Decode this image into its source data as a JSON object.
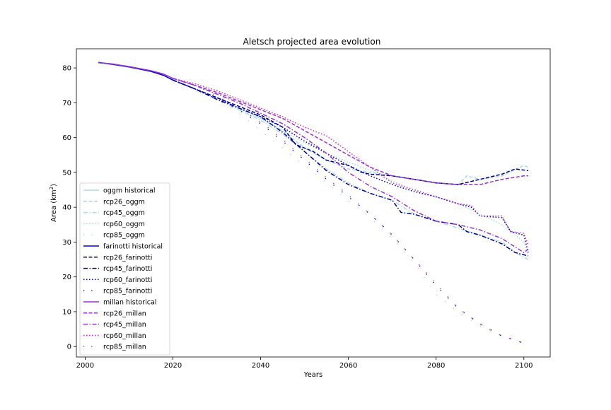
{
  "chart_data": {
    "type": "line",
    "title": "Aletsch projected area evolution",
    "xlabel": "Years",
    "ylabel_main": "Area (km",
    "ylabel_sup": "2",
    "ylabel_tail": ")",
    "xlim": [
      1998,
      2106
    ],
    "ylim": [
      -3,
      85.5
    ],
    "xticks": [
      2000,
      2020,
      2040,
      2060,
      2080,
      2100
    ],
    "yticks": [
      0,
      10,
      20,
      30,
      40,
      50,
      60,
      70,
      80
    ],
    "legend_position": "lower-left",
    "series": [
      {
        "name": "oggm historical",
        "color": "#add8e6",
        "dash": "solid",
        "width": 1.5,
        "points": [
          [
            2003,
            81.5
          ],
          [
            2006,
            81.0
          ],
          [
            2010,
            80.2
          ],
          [
            2015,
            79.0
          ],
          [
            2018,
            77.8
          ],
          [
            2020,
            76.6
          ]
        ]
      },
      {
        "name": "rcp26_oggm",
        "color": "#add8e6",
        "dash": "dashed",
        "width": 1.5,
        "points": [
          [
            2020,
            76.6
          ],
          [
            2025,
            74.0
          ],
          [
            2030,
            71.5
          ],
          [
            2035,
            68.5
          ],
          [
            2040,
            65.5
          ],
          [
            2045,
            62.0
          ],
          [
            2050,
            57.0
          ],
          [
            2055,
            53.5
          ],
          [
            2060,
            51.0
          ],
          [
            2065,
            50.0
          ],
          [
            2070,
            49.0
          ],
          [
            2075,
            48.0
          ],
          [
            2080,
            47.0
          ],
          [
            2085,
            46.5
          ],
          [
            2087,
            49.0
          ],
          [
            2090,
            48.0
          ],
          [
            2095,
            49.0
          ],
          [
            2100,
            52.0
          ],
          [
            2101,
            51.5
          ]
        ]
      },
      {
        "name": "rcp45_oggm",
        "color": "#add8e6",
        "dash": "dashdot",
        "width": 1.5,
        "points": [
          [
            2020,
            76.6
          ],
          [
            2025,
            74.0
          ],
          [
            2030,
            71.0
          ],
          [
            2035,
            68.0
          ],
          [
            2040,
            65.0
          ],
          [
            2045,
            61.0
          ],
          [
            2050,
            56.0
          ],
          [
            2055,
            51.0
          ],
          [
            2060,
            47.0
          ],
          [
            2065,
            44.0
          ],
          [
            2070,
            42.0
          ],
          [
            2075,
            38.0
          ],
          [
            2080,
            36.0
          ],
          [
            2085,
            34.0
          ],
          [
            2090,
            32.0
          ],
          [
            2095,
            30.0
          ],
          [
            2098,
            27.0
          ],
          [
            2101,
            25.0
          ]
        ]
      },
      {
        "name": "rcp60_oggm",
        "color": "#add8e6",
        "dash": "dotted",
        "width": 1.5,
        "points": [
          [
            2020,
            76.6
          ],
          [
            2025,
            74.0
          ],
          [
            2030,
            71.5
          ],
          [
            2035,
            68.5
          ],
          [
            2040,
            65.5
          ],
          [
            2045,
            62.0
          ],
          [
            2050,
            58.5
          ],
          [
            2055,
            55.5
          ],
          [
            2060,
            53.0
          ],
          [
            2065,
            50.5
          ],
          [
            2070,
            47.5
          ],
          [
            2075,
            45.0
          ],
          [
            2080,
            43.0
          ],
          [
            2085,
            41.0
          ],
          [
            2090,
            38.0
          ],
          [
            2095,
            35.0
          ],
          [
            2100,
            30.0
          ],
          [
            2101,
            26.0
          ]
        ]
      },
      {
        "name": "rcp85_oggm",
        "color": "#add8e6",
        "dash": "sparse",
        "width": 1.5,
        "points": [
          [
            2020,
            76.6
          ],
          [
            2025,
            74.0
          ],
          [
            2030,
            71.0
          ],
          [
            2035,
            67.0
          ],
          [
            2040,
            62.0
          ],
          [
            2045,
            57.0
          ],
          [
            2050,
            52.0
          ],
          [
            2055,
            47.0
          ],
          [
            2060,
            42.0
          ],
          [
            2065,
            37.0
          ],
          [
            2070,
            31.0
          ],
          [
            2075,
            24.0
          ],
          [
            2080,
            15.0
          ],
          [
            2085,
            10.0
          ],
          [
            2090,
            6.0
          ],
          [
            2095,
            3.0
          ],
          [
            2100,
            1.0
          ],
          [
            2101,
            0.5
          ]
        ]
      },
      {
        "name": "farinotti historical",
        "color": "#0000cd",
        "dash": "solid",
        "width": 1.5,
        "points": [
          [
            2003,
            81.6
          ],
          [
            2006,
            81.1
          ],
          [
            2010,
            80.3
          ],
          [
            2015,
            79.0
          ],
          [
            2018,
            77.8
          ],
          [
            2020,
            76.5
          ]
        ]
      },
      {
        "name": "rcp26_farinotti",
        "color": "#00008b",
        "dash": "dashed",
        "width": 1.5,
        "points": [
          [
            2020,
            76.5
          ],
          [
            2025,
            74.0
          ],
          [
            2030,
            71.5
          ],
          [
            2035,
            69.0
          ],
          [
            2040,
            66.5
          ],
          [
            2045,
            63.0
          ],
          [
            2048,
            58.0
          ],
          [
            2052,
            56.0
          ],
          [
            2055,
            53.5
          ],
          [
            2060,
            52.0
          ],
          [
            2063,
            50.0
          ],
          [
            2065,
            49.5
          ],
          [
            2070,
            49.0
          ],
          [
            2075,
            48.0
          ],
          [
            2080,
            47.0
          ],
          [
            2085,
            46.5
          ],
          [
            2090,
            48.0
          ],
          [
            2095,
            49.5
          ],
          [
            2098,
            51.0
          ],
          [
            2101,
            50.5
          ]
        ]
      },
      {
        "name": "rcp45_farinotti",
        "color": "#00008b",
        "dash": "dashdot",
        "width": 1.5,
        "points": [
          [
            2020,
            76.5
          ],
          [
            2025,
            74.0
          ],
          [
            2030,
            71.0
          ],
          [
            2035,
            68.5
          ],
          [
            2040,
            66.0
          ],
          [
            2045,
            61.5
          ],
          [
            2050,
            56.0
          ],
          [
            2055,
            50.5
          ],
          [
            2060,
            46.5
          ],
          [
            2065,
            44.0
          ],
          [
            2070,
            42.0
          ],
          [
            2072,
            38.5
          ],
          [
            2075,
            38.0
          ],
          [
            2080,
            36.0
          ],
          [
            2085,
            35.0
          ],
          [
            2087,
            33.0
          ],
          [
            2090,
            32.0
          ],
          [
            2095,
            29.5
          ],
          [
            2098,
            27.0
          ],
          [
            2101,
            26.0
          ]
        ]
      },
      {
        "name": "rcp60_farinotti",
        "color": "#0000cd",
        "dash": "dotted",
        "width": 1.5,
        "points": [
          [
            2020,
            76.5
          ],
          [
            2025,
            74.0
          ],
          [
            2030,
            71.5
          ],
          [
            2035,
            68.5
          ],
          [
            2040,
            66.0
          ],
          [
            2045,
            63.0
          ],
          [
            2050,
            59.0
          ],
          [
            2055,
            55.5
          ],
          [
            2060,
            52.0
          ],
          [
            2065,
            49.0
          ],
          [
            2070,
            46.5
          ],
          [
            2075,
            44.5
          ],
          [
            2080,
            43.0
          ],
          [
            2085,
            41.0
          ],
          [
            2088,
            40.0
          ],
          [
            2090,
            37.5
          ],
          [
            2095,
            37.0
          ],
          [
            2097,
            33.0
          ],
          [
            2100,
            32.0
          ],
          [
            2101,
            27.0
          ]
        ]
      },
      {
        "name": "rcp85_farinotti",
        "color": "#00008b",
        "dash": "sparse",
        "width": 1.5,
        "points": [
          [
            2020,
            76.5
          ],
          [
            2025,
            74.0
          ],
          [
            2030,
            71.0
          ],
          [
            2035,
            68.0
          ],
          [
            2040,
            64.0
          ],
          [
            2045,
            59.0
          ],
          [
            2050,
            53.5
          ],
          [
            2055,
            48.0
          ],
          [
            2060,
            43.0
          ],
          [
            2065,
            38.0
          ],
          [
            2070,
            32.0
          ],
          [
            2075,
            25.0
          ],
          [
            2080,
            17.5
          ],
          [
            2085,
            11.0
          ],
          [
            2090,
            6.5
          ],
          [
            2095,
            3.0
          ],
          [
            2100,
            1.0
          ],
          [
            2101,
            0.5
          ]
        ]
      },
      {
        "name": "millan historical",
        "color": "#9932cc",
        "dash": "solid",
        "width": 1.5,
        "points": [
          [
            2003,
            81.5
          ],
          [
            2006,
            81.2
          ],
          [
            2010,
            80.4
          ],
          [
            2015,
            79.2
          ],
          [
            2018,
            78.2
          ],
          [
            2020,
            77.0
          ]
        ]
      },
      {
        "name": "rcp26_millan",
        "color": "#9932cc",
        "dash": "dashed",
        "width": 1.5,
        "points": [
          [
            2020,
            77.0
          ],
          [
            2025,
            75.0
          ],
          [
            2030,
            73.0
          ],
          [
            2035,
            70.5
          ],
          [
            2040,
            68.0
          ],
          [
            2045,
            65.5
          ],
          [
            2050,
            62.0
          ],
          [
            2055,
            58.5
          ],
          [
            2060,
            55.0
          ],
          [
            2065,
            51.5
          ],
          [
            2070,
            49.0
          ],
          [
            2075,
            48.0
          ],
          [
            2080,
            47.0
          ],
          [
            2085,
            46.5
          ],
          [
            2090,
            46.5
          ],
          [
            2095,
            48.0
          ],
          [
            2100,
            49.0
          ],
          [
            2101,
            49.0
          ]
        ]
      },
      {
        "name": "rcp45_millan",
        "color": "#9932cc",
        "dash": "dashdot",
        "width": 1.5,
        "points": [
          [
            2020,
            77.0
          ],
          [
            2025,
            75.0
          ],
          [
            2030,
            72.5
          ],
          [
            2035,
            70.0
          ],
          [
            2040,
            67.0
          ],
          [
            2045,
            64.0
          ],
          [
            2050,
            60.0
          ],
          [
            2055,
            55.5
          ],
          [
            2060,
            50.0
          ],
          [
            2065,
            46.0
          ],
          [
            2070,
            43.0
          ],
          [
            2075,
            39.0
          ],
          [
            2080,
            36.0
          ],
          [
            2085,
            35.0
          ],
          [
            2090,
            33.5
          ],
          [
            2095,
            31.0
          ],
          [
            2100,
            27.0
          ],
          [
            2101,
            28.0
          ]
        ]
      },
      {
        "name": "rcp60_millan",
        "color": "#cc33cc",
        "dash": "dotted",
        "width": 1.5,
        "points": [
          [
            2020,
            77.0
          ],
          [
            2025,
            75.5
          ],
          [
            2030,
            73.5
          ],
          [
            2035,
            71.0
          ],
          [
            2040,
            68.5
          ],
          [
            2045,
            66.0
          ],
          [
            2050,
            63.0
          ],
          [
            2055,
            60.5
          ],
          [
            2060,
            56.0
          ],
          [
            2065,
            51.5
          ],
          [
            2070,
            47.0
          ],
          [
            2075,
            45.0
          ],
          [
            2080,
            43.0
          ],
          [
            2085,
            41.0
          ],
          [
            2088,
            40.5
          ],
          [
            2090,
            37.5
          ],
          [
            2095,
            37.5
          ],
          [
            2097,
            33.0
          ],
          [
            2100,
            32.5
          ],
          [
            2101,
            29.0
          ]
        ]
      },
      {
        "name": "rcp85_millan",
        "color": "#9932cc",
        "dash": "sparse",
        "width": 1.5,
        "points": [
          [
            2020,
            77.0
          ],
          [
            2025,
            75.0
          ],
          [
            2030,
            72.0
          ],
          [
            2035,
            68.5
          ],
          [
            2040,
            64.5
          ],
          [
            2045,
            59.5
          ],
          [
            2050,
            54.0
          ],
          [
            2055,
            48.5
          ],
          [
            2060,
            43.5
          ],
          [
            2065,
            38.0
          ],
          [
            2070,
            32.0
          ],
          [
            2075,
            25.0
          ],
          [
            2080,
            18.0
          ],
          [
            2085,
            11.0
          ],
          [
            2090,
            6.5
          ],
          [
            2095,
            3.0
          ],
          [
            2100,
            1.0
          ],
          [
            2101,
            0.5
          ]
        ]
      }
    ]
  }
}
